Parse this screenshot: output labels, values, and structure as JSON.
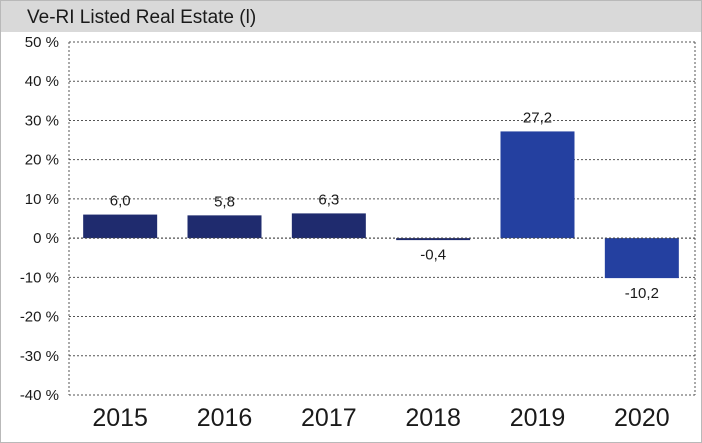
{
  "chart_data": {
    "type": "bar",
    "title": "Ve-RI Listed Real Estate (l)",
    "categories": [
      "2015",
      "2016",
      "2017",
      "2018",
      "2019",
      "2020"
    ],
    "values": [
      6.0,
      5.8,
      6.3,
      -0.4,
      27.2,
      -10.2
    ],
    "value_labels": [
      "6,0",
      "5,8",
      "6,3",
      "-0,4",
      "27,2",
      "-10,2"
    ],
    "ylim": [
      -40,
      50
    ],
    "yticks": [
      50,
      40,
      30,
      20,
      10,
      0,
      -10,
      -20,
      -30,
      -40
    ],
    "ytick_labels": [
      "50 %",
      "40 %",
      "30 %",
      "20 %",
      "10 %",
      "0 %",
      "-10 %",
      "-20 %",
      "-30 %",
      "-40 %"
    ],
    "bar_colors": [
      "#1f2b6e",
      "#1f2b6e",
      "#1f2b6e",
      "#1f2b6e",
      "#2440a0",
      "#2440a0"
    ],
    "grid": true,
    "xlabel": "",
    "ylabel": ""
  }
}
